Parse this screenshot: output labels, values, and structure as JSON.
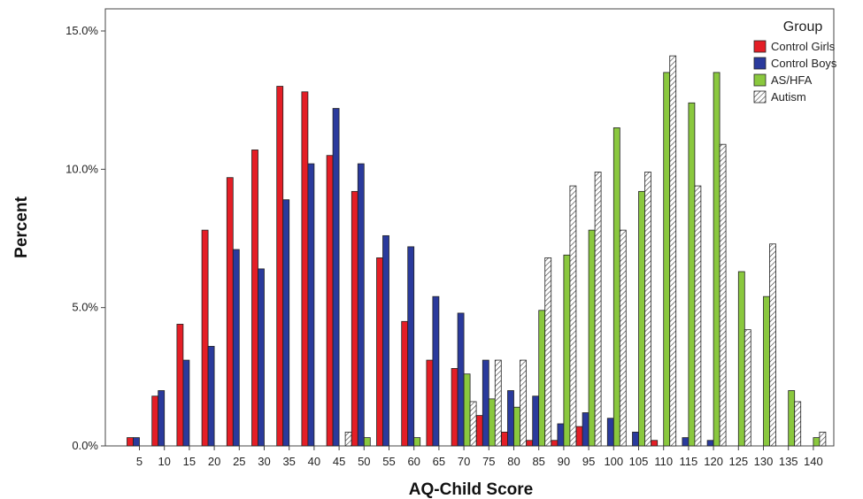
{
  "chart_data": {
    "type": "bar",
    "title": "",
    "xlabel": "AQ-Child Score",
    "ylabel": "Percent",
    "ylim": [
      0,
      15.0
    ],
    "yticks": [
      0,
      5,
      10,
      15
    ],
    "ytick_labels": [
      "0.0%",
      "5.0%",
      "10.0%",
      "15.0%"
    ],
    "grid": false,
    "legend_position": "top-right",
    "legend_title": "Group",
    "categories": [
      "5",
      "10",
      "15",
      "20",
      "25",
      "30",
      "35",
      "40",
      "45",
      "50",
      "55",
      "60",
      "65",
      "70",
      "75",
      "80",
      "85",
      "90",
      "95",
      "100",
      "105",
      "110",
      "115",
      "120",
      "125",
      "130",
      "135",
      "140"
    ],
    "series": [
      {
        "name": "Control Girls",
        "color": "#e41e26",
        "pattern": "solid",
        "values": [
          0.3,
          1.8,
          4.4,
          7.8,
          9.7,
          10.7,
          13.0,
          12.8,
          10.5,
          9.2,
          6.8,
          4.5,
          3.1,
          2.8,
          1.1,
          0.5,
          0.2,
          0.2,
          0.7,
          0,
          0,
          0.2,
          0,
          0,
          0,
          0,
          0,
          0
        ]
      },
      {
        "name": "Control Boys",
        "color": "#2a3a9c",
        "pattern": "solid",
        "values": [
          0.3,
          2.0,
          3.1,
          3.6,
          7.1,
          6.4,
          8.9,
          10.2,
          12.2,
          10.2,
          7.6,
          7.2,
          5.4,
          4.8,
          3.1,
          2.0,
          1.8,
          0.8,
          1.2,
          1.0,
          0.5,
          0,
          0.3,
          0.2,
          0,
          0,
          0,
          0
        ]
      },
      {
        "name": "AS/HFA",
        "color": "#8ac83e",
        "pattern": "solid",
        "values": [
          0,
          0,
          0,
          0,
          0,
          0,
          0,
          0,
          0,
          0.3,
          0,
          0.3,
          0,
          2.6,
          1.7,
          1.4,
          4.9,
          6.9,
          7.8,
          11.5,
          9.2,
          13.5,
          12.4,
          13.5,
          6.3,
          5.4,
          2.0,
          0.3
        ]
      },
      {
        "name": "Autism",
        "color": "#ffffff",
        "pattern": "hatch",
        "values": [
          0,
          0,
          0,
          0,
          0,
          0,
          0,
          0,
          0.5,
          0,
          0,
          0,
          0,
          1.6,
          3.1,
          3.1,
          6.8,
          9.4,
          9.9,
          7.8,
          9.9,
          14.1,
          9.4,
          10.9,
          4.2,
          7.3,
          1.6,
          0.5
        ]
      }
    ]
  }
}
